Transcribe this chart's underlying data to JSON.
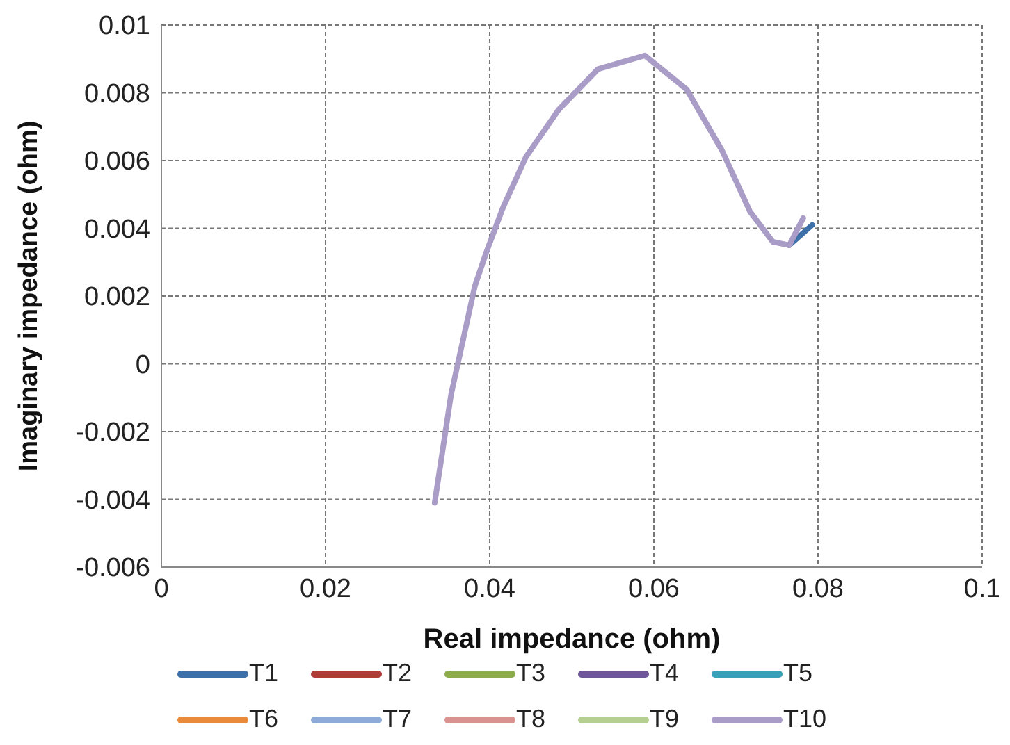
{
  "chart_data": {
    "type": "line",
    "xlabel": "Real impedance (ohm)",
    "ylabel": "Imaginary impedance (ohm)",
    "xlim": [
      0,
      0.1
    ],
    "xticks": [
      0,
      0.02,
      0.04,
      0.06,
      0.08,
      0.1
    ],
    "ylim": [
      -0.006,
      0.01
    ],
    "yticks": [
      -0.006,
      -0.004,
      -0.002,
      0,
      0.002,
      0.004,
      0.006,
      0.008,
      0.01
    ],
    "grid": true,
    "legend": "bottom",
    "marker": "none",
    "line_style": "solid",
    "series": [
      {
        "name": "T1",
        "color": "#3d6fa8",
        "x": [
          0.0765,
          0.0793
        ],
        "values": [
          0.0035,
          0.0041
        ]
      },
      {
        "name": "T2",
        "color": "#b03c38"
      },
      {
        "name": "T3",
        "color": "#8cab4a"
      },
      {
        "name": "T4",
        "color": "#6e5698"
      },
      {
        "name": "T5",
        "color": "#3aa0b8"
      },
      {
        "name": "T6",
        "color": "#e88a3a"
      },
      {
        "name": "T7",
        "color": "#8eaad8"
      },
      {
        "name": "T8",
        "color": "#d99290"
      },
      {
        "name": "T9",
        "color": "#b5cf90"
      },
      {
        "name": "T10",
        "color": "#a99cc6",
        "x": [
          0.0333,
          0.0353,
          0.0382,
          0.0396,
          0.0416,
          0.0444,
          0.0484,
          0.0532,
          0.0589,
          0.064,
          0.0683,
          0.0717,
          0.0745,
          0.0765,
          0.0782
        ],
        "values": [
          -0.0041,
          -0.0009,
          0.0023,
          0.0033,
          0.0046,
          0.0061,
          0.0075,
          0.0087,
          0.0091,
          0.0081,
          0.0063,
          0.0045,
          0.0036,
          0.0035,
          0.0043
        ]
      }
    ]
  }
}
